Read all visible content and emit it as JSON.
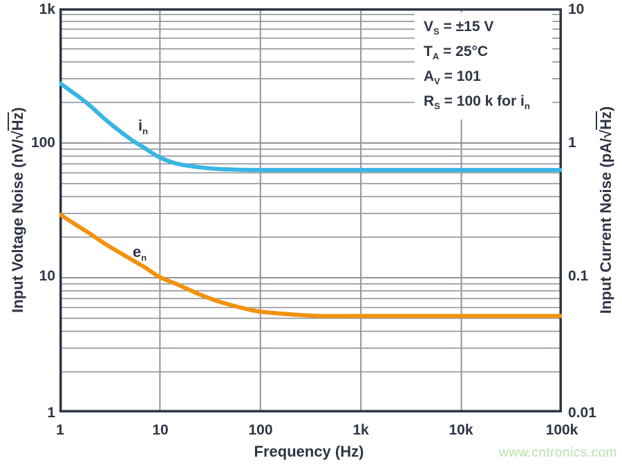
{
  "watermark": "www.cntronics.com",
  "colors": {
    "axis_and_text": "#2e3644",
    "gridline": "#8f939c",
    "current_noise_curve_blue": "#38b6e4",
    "voltage_noise_curve_orange": "#f1920e",
    "watermark_green": "#b7e3a8",
    "background": "#ffffff"
  },
  "chart_data": {
    "type": "line",
    "scale": "log-log",
    "xlabel": "Frequency (Hz)",
    "x_ticks": [
      "1",
      "10",
      "100",
      "1k",
      "10k",
      "100k"
    ],
    "x_range": [
      1,
      100000
    ],
    "grid": "horizontal major+minor decade lines, vertical major decade lines only",
    "legend_position": "labels next to curves",
    "left_axis": {
      "label_pre": "Input Voltage Noise (nV/√",
      "label_over": "Hz",
      "label_post": ")",
      "ticks": [
        "1k",
        "100",
        "10",
        "1"
      ],
      "range": [
        1,
        1000
      ]
    },
    "right_axis": {
      "label_pre": "Input Current Noise (pA/√",
      "label_over": "Hz",
      "label_post": ")",
      "ticks": [
        "10",
        "1",
        "0.1",
        "0.01"
      ],
      "range": [
        0.01,
        10
      ]
    },
    "series": [
      {
        "name": "in",
        "label_base": "i",
        "label_sub": "n",
        "axis": "right",
        "units": "pA/√Hz",
        "color": "#38b6e4",
        "x": [
          1,
          1.5,
          2,
          3,
          5,
          7,
          10,
          15,
          25,
          40,
          70,
          100,
          300,
          1000,
          10000,
          100000
        ],
        "y": [
          2.8,
          2.25,
          1.9,
          1.45,
          1.08,
          0.92,
          0.78,
          0.7,
          0.66,
          0.64,
          0.632,
          0.63,
          0.63,
          0.63,
          0.63,
          0.63
        ]
      },
      {
        "name": "en",
        "label_base": "e",
        "label_sub": "n",
        "axis": "left",
        "units": "nV/√Hz",
        "color": "#f1920e",
        "x": [
          1,
          1.5,
          2,
          3,
          5,
          7,
          10,
          15,
          25,
          40,
          70,
          100,
          200,
          400,
          1000,
          10000,
          100000
        ],
        "y": [
          29.7,
          24.4,
          21.3,
          17.4,
          13.9,
          12.0,
          10.1,
          8.9,
          7.5,
          6.6,
          5.9,
          5.6,
          5.35,
          5.2,
          5.2,
          5.2,
          5.2
        ]
      }
    ],
    "conditions": {
      "lines": [
        {
          "base": "V",
          "sub": "S",
          "rest": " = ±15 V"
        },
        {
          "base": "T",
          "sub": "A",
          "rest": " = 25°C"
        },
        {
          "base": "A",
          "sub": "V",
          "rest": " = 101"
        },
        {
          "base": "R",
          "sub": "S",
          "rest": " = 100 k for i",
          "rest_sub": "n"
        }
      ]
    }
  }
}
